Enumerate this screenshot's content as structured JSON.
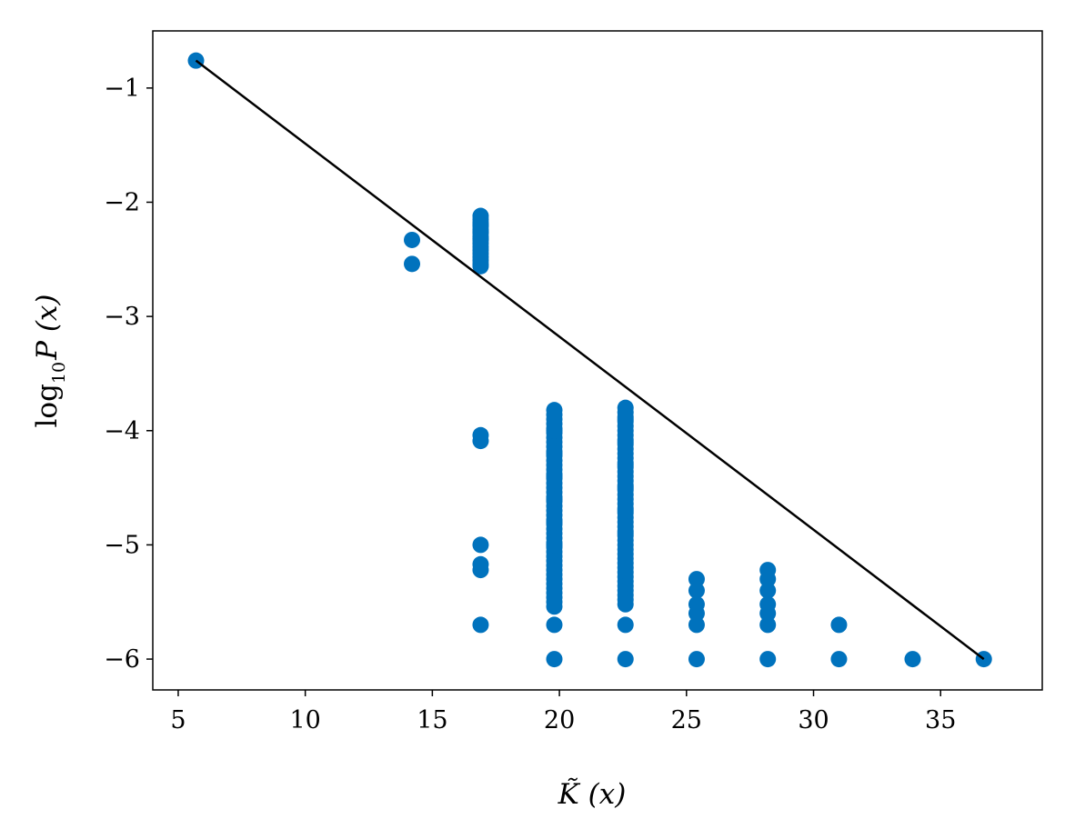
{
  "chart_data": {
    "type": "scatter",
    "xlabel": "K̃ (x)",
    "ylabel_main": "log",
    "ylabel_sub": "10",
    "ylabel_rest": "P (x)",
    "xlim": [
      4.0,
      39.0
    ],
    "ylim": [
      -6.27,
      -0.5
    ],
    "x_ticks": [
      5,
      10,
      15,
      20,
      25,
      30,
      35
    ],
    "x_tick_labels": [
      "5",
      "10",
      "15",
      "20",
      "25",
      "30",
      "35"
    ],
    "y_ticks": [
      -1,
      -2,
      -3,
      -4,
      -5,
      -6
    ],
    "y_tick_labels": [
      "−1",
      "−2",
      "−3",
      "−4",
      "−5",
      "−6"
    ],
    "grid": false,
    "legend": "none",
    "colors": {
      "points": "#0072bd",
      "fit_line": "#000000",
      "axes": "#000000"
    },
    "series": [
      {
        "kind": "points",
        "x": [
          5.7,
          14.2,
          14.2,
          16.9,
          16.9,
          16.9,
          16.9,
          16.9,
          16.9,
          16.9,
          16.9,
          16.9,
          16.9,
          16.9,
          16.9,
          16.9,
          16.9,
          16.9,
          16.9,
          16.9,
          16.9,
          16.9,
          16.9,
          16.9,
          16.9,
          16.9,
          16.9,
          16.9,
          19.8,
          19.8,
          19.8,
          19.8,
          19.8,
          19.8,
          19.8,
          19.8,
          19.8,
          19.8,
          19.8,
          19.8,
          19.8,
          19.8,
          19.8,
          19.8,
          19.8,
          19.8,
          19.8,
          19.8,
          19.8,
          19.8,
          19.8,
          19.8,
          19.8,
          19.8,
          19.8,
          19.8,
          19.8,
          19.8,
          19.8,
          19.8,
          19.8,
          19.8,
          19.8,
          19.8,
          19.8,
          19.8,
          19.8,
          19.8,
          19.8,
          19.8,
          19.8,
          19.8,
          19.8,
          19.8,
          19.8,
          19.8,
          19.8,
          19.8,
          19.8,
          19.8,
          22.6,
          22.6,
          22.6,
          22.6,
          22.6,
          22.6,
          22.6,
          22.6,
          22.6,
          22.6,
          22.6,
          22.6,
          22.6,
          22.6,
          22.6,
          22.6,
          22.6,
          22.6,
          22.6,
          22.6,
          22.6,
          22.6,
          22.6,
          22.6,
          22.6,
          22.6,
          22.6,
          22.6,
          22.6,
          22.6,
          22.6,
          22.6,
          22.6,
          22.6,
          22.6,
          22.6,
          22.6,
          22.6,
          22.6,
          22.6,
          22.6,
          22.6,
          22.6,
          22.6,
          22.6,
          22.6,
          22.6,
          22.6,
          22.6,
          22.6,
          22.6,
          22.6,
          25.4,
          25.4,
          25.4,
          25.4,
          25.4,
          25.4,
          28.2,
          28.2,
          28.2,
          28.2,
          28.2,
          28.2,
          28.2,
          31.0,
          31.0,
          33.9,
          36.7
        ],
        "y": [
          -0.76,
          -2.33,
          -2.54,
          -2.12,
          -2.15,
          -2.18,
          -2.21,
          -2.24,
          -2.27,
          -2.3,
          -2.33,
          -2.36,
          -2.39,
          -2.42,
          -2.45,
          -2.48,
          -2.51,
          -2.54,
          -2.56,
          -2.2,
          -2.26,
          -2.32,
          -4.04,
          -4.09,
          -5.0,
          -5.17,
          -5.22,
          -5.7,
          -3.82,
          -3.86,
          -3.9,
          -3.94,
          -3.98,
          -4.02,
          -4.06,
          -4.1,
          -4.14,
          -4.18,
          -4.22,
          -4.26,
          -4.3,
          -4.34,
          -4.38,
          -4.42,
          -4.46,
          -4.5,
          -4.54,
          -4.58,
          -4.62,
          -4.66,
          -4.7,
          -4.74,
          -4.78,
          -4.82,
          -4.86,
          -4.9,
          -4.94,
          -4.98,
          -5.02,
          -5.06,
          -5.1,
          -5.14,
          -5.18,
          -5.22,
          -5.26,
          -5.3,
          -5.34,
          -5.38,
          -5.42,
          -5.46,
          -5.5,
          -5.54,
          -5.7,
          -6.0,
          -4.0,
          -4.2,
          -4.4,
          -4.6,
          -4.8,
          -5.0,
          -3.8,
          -3.84,
          -3.88,
          -3.92,
          -3.96,
          -4.0,
          -4.04,
          -4.08,
          -4.12,
          -4.16,
          -4.2,
          -4.24,
          -4.28,
          -4.32,
          -4.36,
          -4.4,
          -4.44,
          -4.48,
          -4.52,
          -4.56,
          -4.6,
          -4.64,
          -4.68,
          -4.72,
          -4.76,
          -4.8,
          -4.84,
          -4.88,
          -4.92,
          -4.96,
          -5.0,
          -5.04,
          -5.08,
          -5.12,
          -5.16,
          -5.2,
          -5.24,
          -5.28,
          -5.32,
          -5.36,
          -5.4,
          -5.44,
          -5.48,
          -5.52,
          -5.7,
          -6.0,
          -3.9,
          -4.1,
          -4.3,
          -4.5,
          -4.7,
          -4.9,
          -5.3,
          -5.4,
          -5.52,
          -5.7,
          -6.0,
          -5.6,
          -5.22,
          -5.3,
          -5.4,
          -5.52,
          -5.7,
          -6.0,
          -5.6,
          -5.7,
          -6.0,
          -6.0,
          -6.0
        ]
      },
      {
        "kind": "fit_line",
        "x": [
          5.7,
          36.7
        ],
        "y": [
          -0.76,
          -6.0
        ]
      }
    ]
  }
}
